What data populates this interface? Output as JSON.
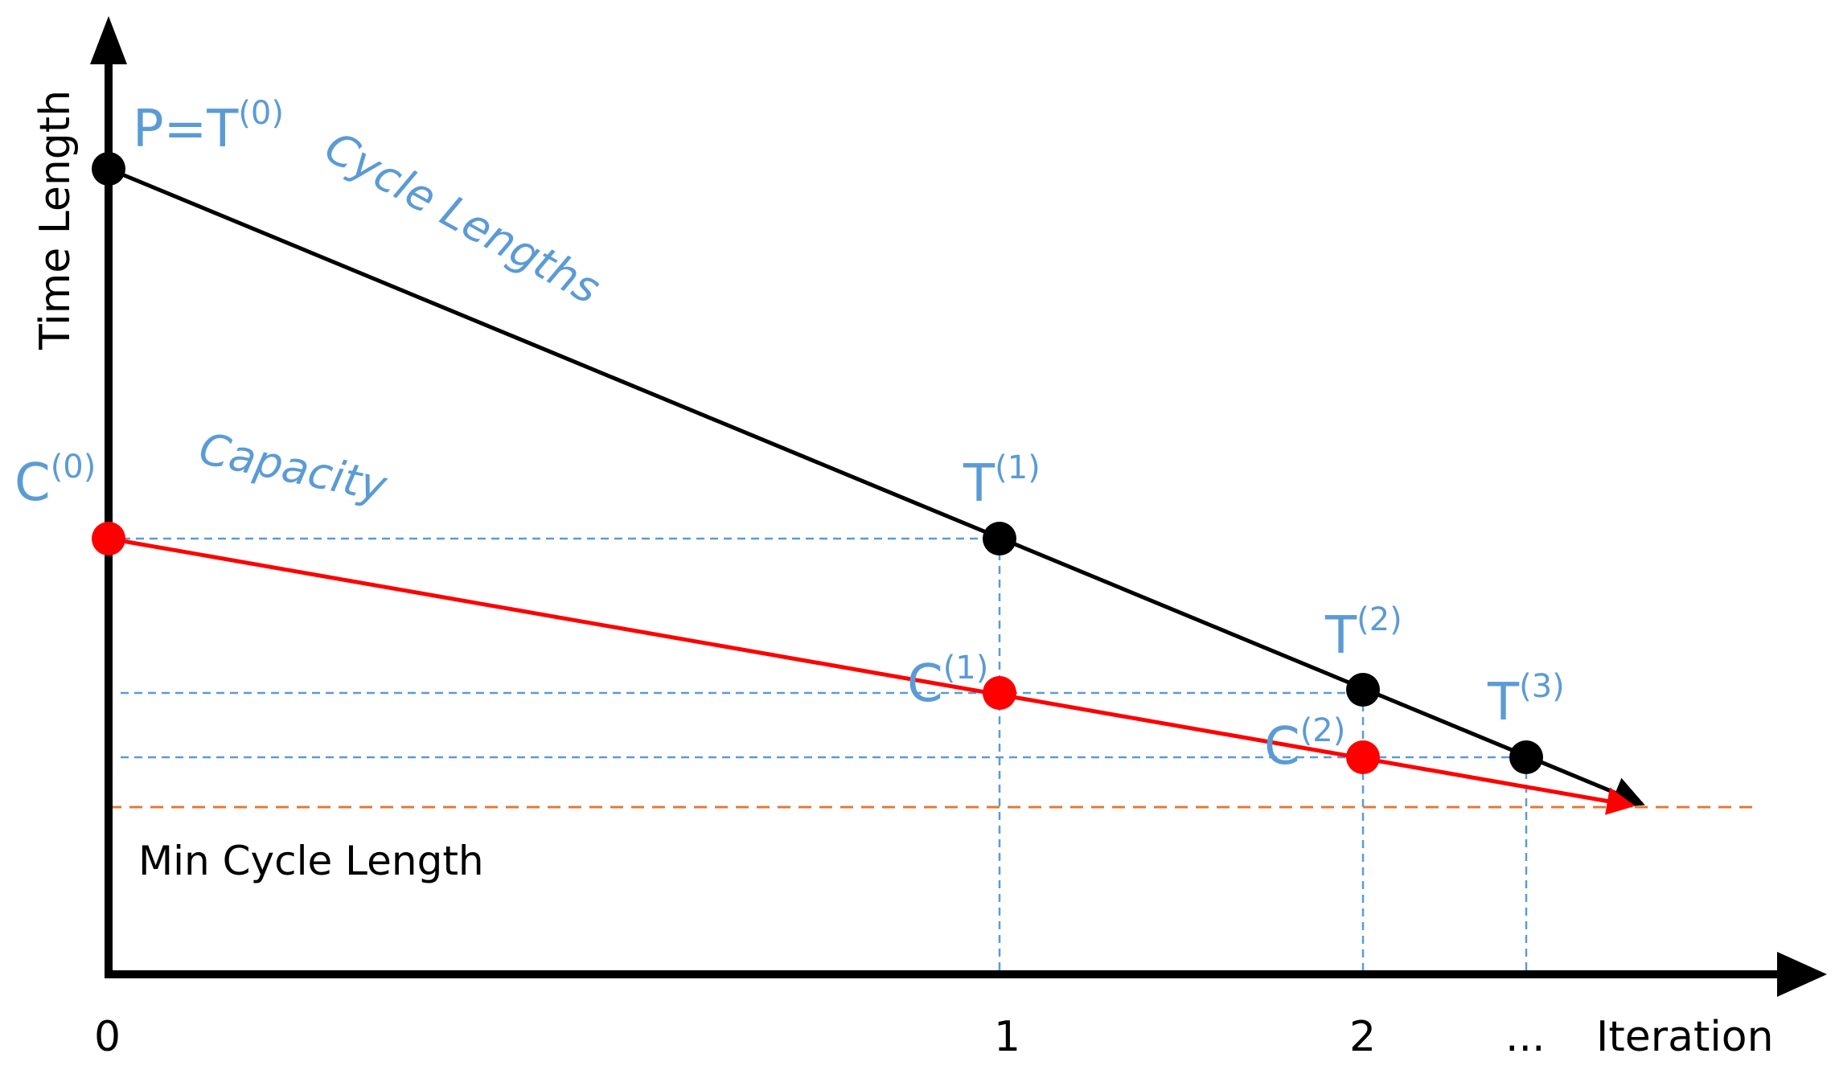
{
  "axes": {
    "y_label": "Time Length",
    "x_label": "Iteration",
    "x_ticks": [
      "0",
      "1",
      "2",
      "..."
    ]
  },
  "curves": {
    "cycle_label": "Cycle Lengths",
    "capacity_label": "Capacity",
    "min_label": "Min Cycle Length"
  },
  "points": {
    "p0": {
      "base": "P=T",
      "sup": "(0)"
    },
    "t1": {
      "base": "T",
      "sup": "(1)"
    },
    "t2": {
      "base": "T",
      "sup": "(2)"
    },
    "t3": {
      "base": "T",
      "sup": "(3)"
    },
    "c0": {
      "base": "C",
      "sup": "(0)"
    },
    "c1": {
      "base": "C",
      "sup": "(1)"
    },
    "c2": {
      "base": "C",
      "sup": "(2)"
    }
  },
  "colors": {
    "cycle_line": "#000000",
    "capacity_line": "#ff0000",
    "annotation": "#5b9bd5",
    "min_line": "#e07b39"
  }
}
